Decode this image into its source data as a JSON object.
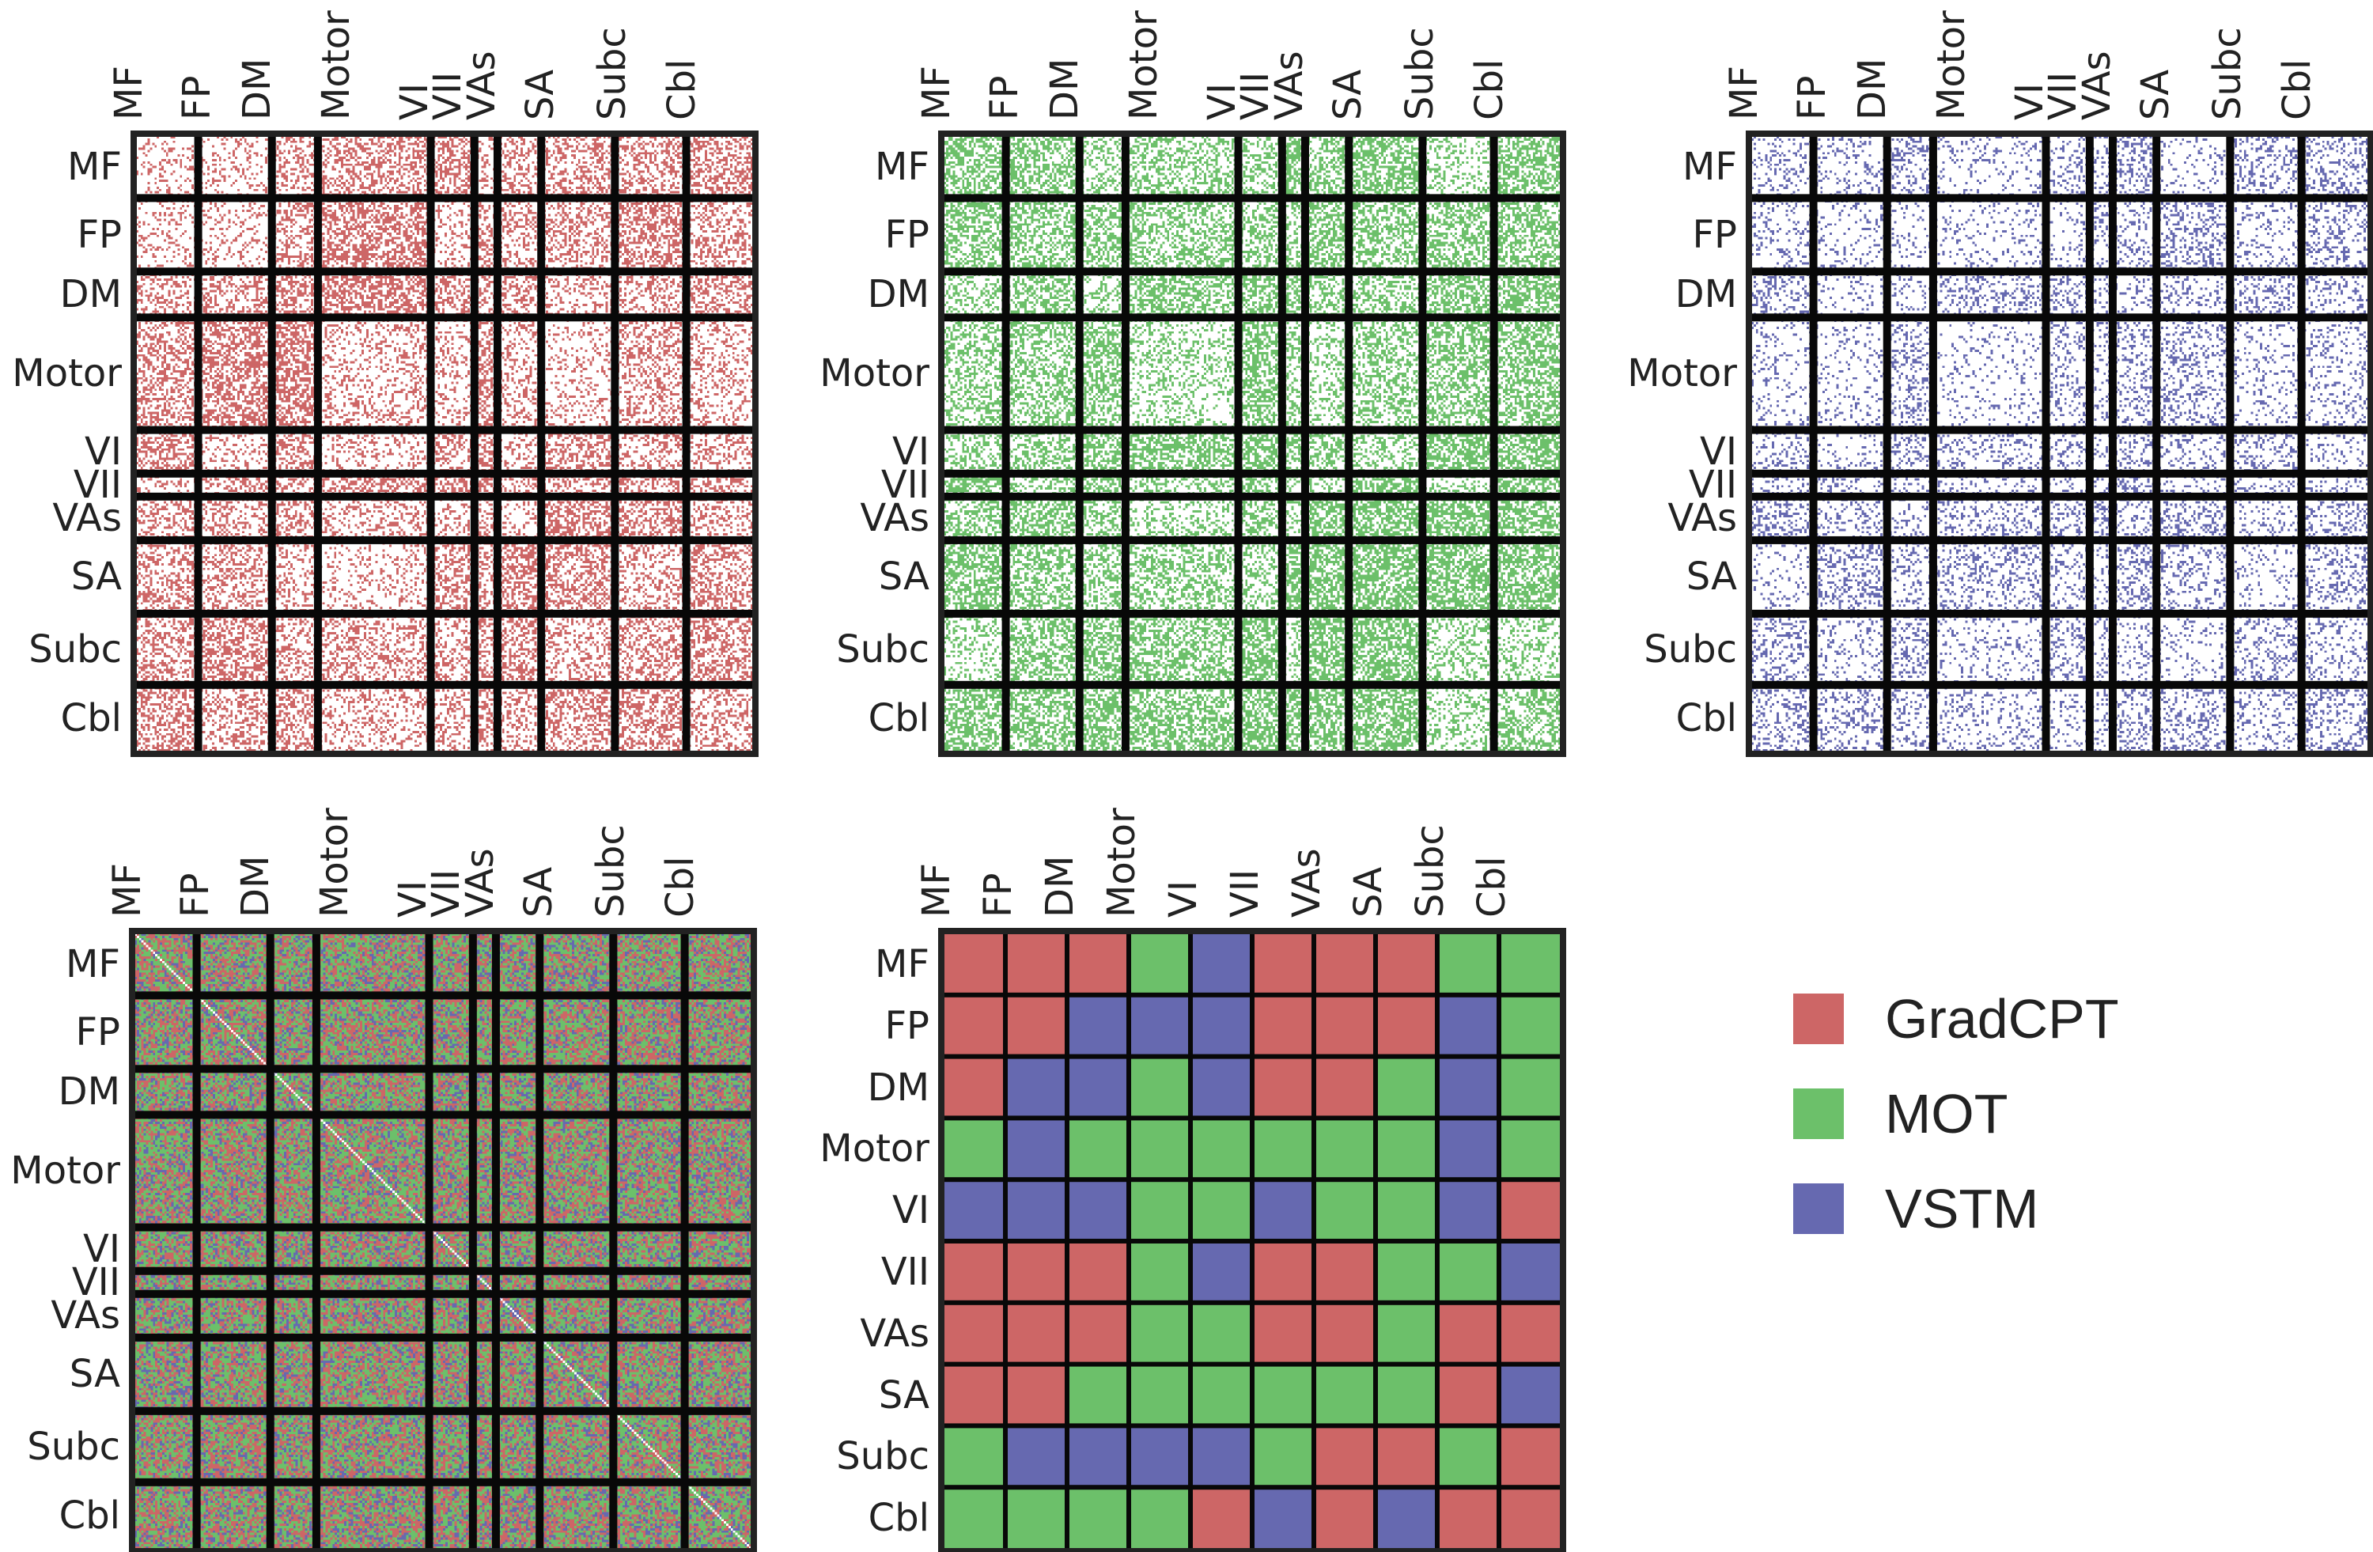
{
  "chart_data": {
    "type": "heatmap",
    "networks": [
      "MF",
      "FP",
      "DM",
      "Motor",
      "VI",
      "VII",
      "VAs",
      "SA",
      "Subc",
      "Cbl"
    ],
    "network_node_counts": [
      27,
      32,
      20,
      49,
      19,
      10,
      19,
      32,
      31,
      29
    ],
    "node_panels": [
      {
        "task": "GradCPT",
        "color": "#cd6666",
        "density": 0.36
      },
      {
        "task": "MOT",
        "color": "#6cc06a",
        "density": 0.45
      },
      {
        "task": "VSTM",
        "color": "#6669b0",
        "density": 0.2
      },
      {
        "task": "combined",
        "color": "mixed",
        "diagonal": "white"
      }
    ],
    "network_summary": {
      "legend": [
        {
          "label": "GradCPT",
          "code": "R",
          "color": "#cd6666"
        },
        {
          "label": "MOT",
          "code": "G",
          "color": "#6cc06a"
        },
        {
          "label": "VSTM",
          "code": "B",
          "color": "#6669b0"
        }
      ],
      "grid": [
        [
          "R",
          "R",
          "R",
          "G",
          "B",
          "R",
          "R",
          "R",
          "G",
          "G"
        ],
        [
          "R",
          "R",
          "B",
          "B",
          "B",
          "R",
          "R",
          "R",
          "B",
          "G"
        ],
        [
          "R",
          "B",
          "B",
          "G",
          "B",
          "R",
          "R",
          "G",
          "B",
          "G"
        ],
        [
          "G",
          "B",
          "G",
          "G",
          "G",
          "G",
          "G",
          "G",
          "B",
          "G"
        ],
        [
          "B",
          "B",
          "B",
          "G",
          "G",
          "B",
          "G",
          "G",
          "B",
          "R"
        ],
        [
          "R",
          "R",
          "R",
          "G",
          "B",
          "R",
          "R",
          "G",
          "G",
          "B"
        ],
        [
          "R",
          "R",
          "R",
          "G",
          "G",
          "R",
          "R",
          "G",
          "R",
          "R"
        ],
        [
          "R",
          "R",
          "G",
          "G",
          "G",
          "G",
          "G",
          "G",
          "R",
          "B"
        ],
        [
          "G",
          "B",
          "B",
          "B",
          "B",
          "G",
          "R",
          "R",
          "G",
          "R"
        ],
        [
          "G",
          "G",
          "G",
          "G",
          "R",
          "B",
          "R",
          "B",
          "R",
          "R"
        ]
      ]
    }
  }
}
